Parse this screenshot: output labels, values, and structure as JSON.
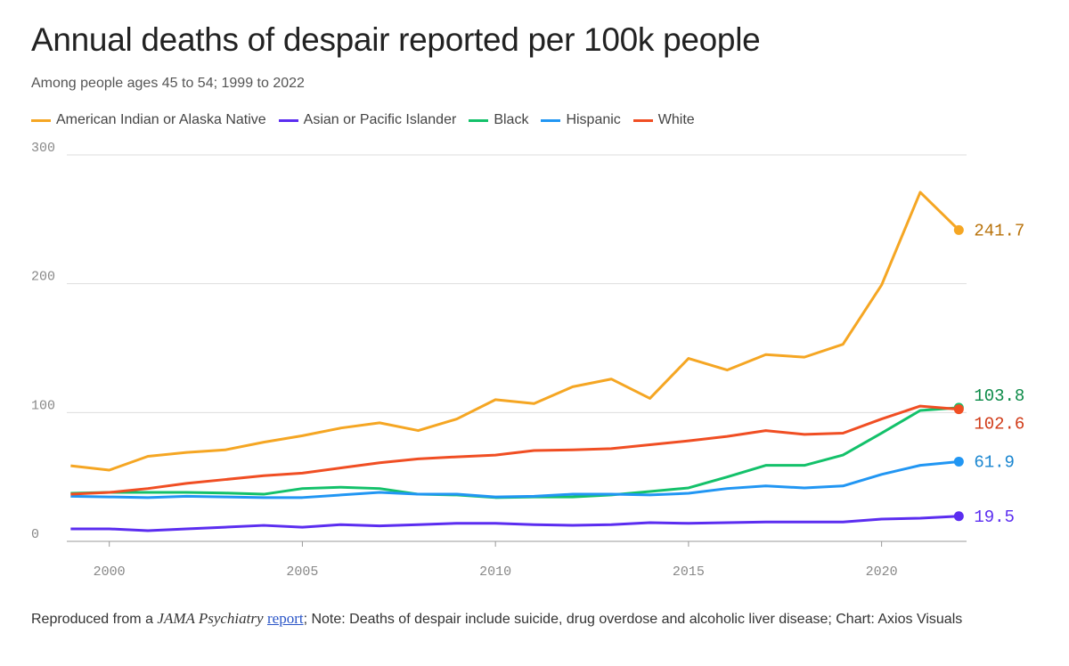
{
  "chart_data": {
    "type": "line",
    "title": "Annual deaths of despair reported per 100k people",
    "subtitle": "Among people ages 45 to 54; 1999 to 2022",
    "xlabel": "",
    "ylabel": "",
    "x": [
      1999,
      2000,
      2001,
      2002,
      2003,
      2004,
      2005,
      2006,
      2007,
      2008,
      2009,
      2010,
      2011,
      2012,
      2013,
      2014,
      2015,
      2016,
      2017,
      2018,
      2019,
      2020,
      2021,
      2022
    ],
    "xlim": [
      1998.9,
      2022.2
    ],
    "ylim": [
      0,
      300
    ],
    "yticks": [
      "0",
      "100",
      "200",
      "300"
    ],
    "xticks": [
      "2000",
      "2005",
      "2010",
      "2015",
      "2020"
    ],
    "grid": true,
    "legend_position": "top-left",
    "series": [
      {
        "name": "American Indian or Alaska Native",
        "color": "#f5a623",
        "label_color": "#b8720a",
        "end_label": "241.7",
        "values": [
          58.7,
          55.3,
          66,
          69,
          71,
          77,
          82,
          88,
          92,
          86,
          95,
          110,
          107,
          120,
          126,
          111,
          142,
          133,
          145,
          143,
          153,
          199,
          271,
          241.7
        ]
      },
      {
        "name": "Asian or Pacific Islander",
        "color": "#5b2df0",
        "label_color": "#5b2df0",
        "end_label": "19.5",
        "values": [
          9.7,
          9.7,
          8.3,
          9.7,
          11,
          12.4,
          11,
          13,
          12,
          13,
          14,
          14,
          13,
          12.4,
          13,
          14.5,
          14,
          14.5,
          15,
          15,
          15,
          17.3,
          18,
          19.5
        ]
      },
      {
        "name": "Black",
        "color": "#13c16a",
        "label_color": "#0b8a47",
        "end_label": "103.8",
        "values": [
          37.3,
          38,
          38,
          38,
          37.5,
          36.6,
          41,
          42,
          41,
          36.6,
          36,
          34,
          34.5,
          34.5,
          36,
          38.7,
          41.5,
          50,
          59,
          59,
          67,
          84,
          101.6,
          103.8
        ]
      },
      {
        "name": "Hispanic",
        "color": "#2196f3",
        "label_color": "#1a86d0",
        "end_label": "61.9",
        "values": [
          35,
          34.5,
          34,
          35,
          34.5,
          34,
          34,
          36,
          38,
          36.6,
          36.6,
          34.5,
          35,
          36.6,
          36.6,
          36,
          37.3,
          41,
          43,
          41.5,
          43,
          52,
          59,
          61.9
        ]
      },
      {
        "name": "White",
        "color": "#f04e23",
        "label_color": "#d03a17",
        "end_label": "102.6",
        "values": [
          36.6,
          38,
          41,
          45,
          48,
          51,
          53,
          57,
          61,
          64,
          65.6,
          67,
          70.5,
          71,
          72,
          75,
          78,
          81.5,
          86,
          83,
          84,
          95,
          105,
          102.6
        ]
      }
    ]
  },
  "footer": {
    "prefix": "Reproduced from a ",
    "journal": "JAMA Psychiatry",
    "link_text": "report",
    "note": "; Note: Deaths of despair include suicide, drug overdose and alcoholic liver disease; Chart: Axios Visuals"
  }
}
